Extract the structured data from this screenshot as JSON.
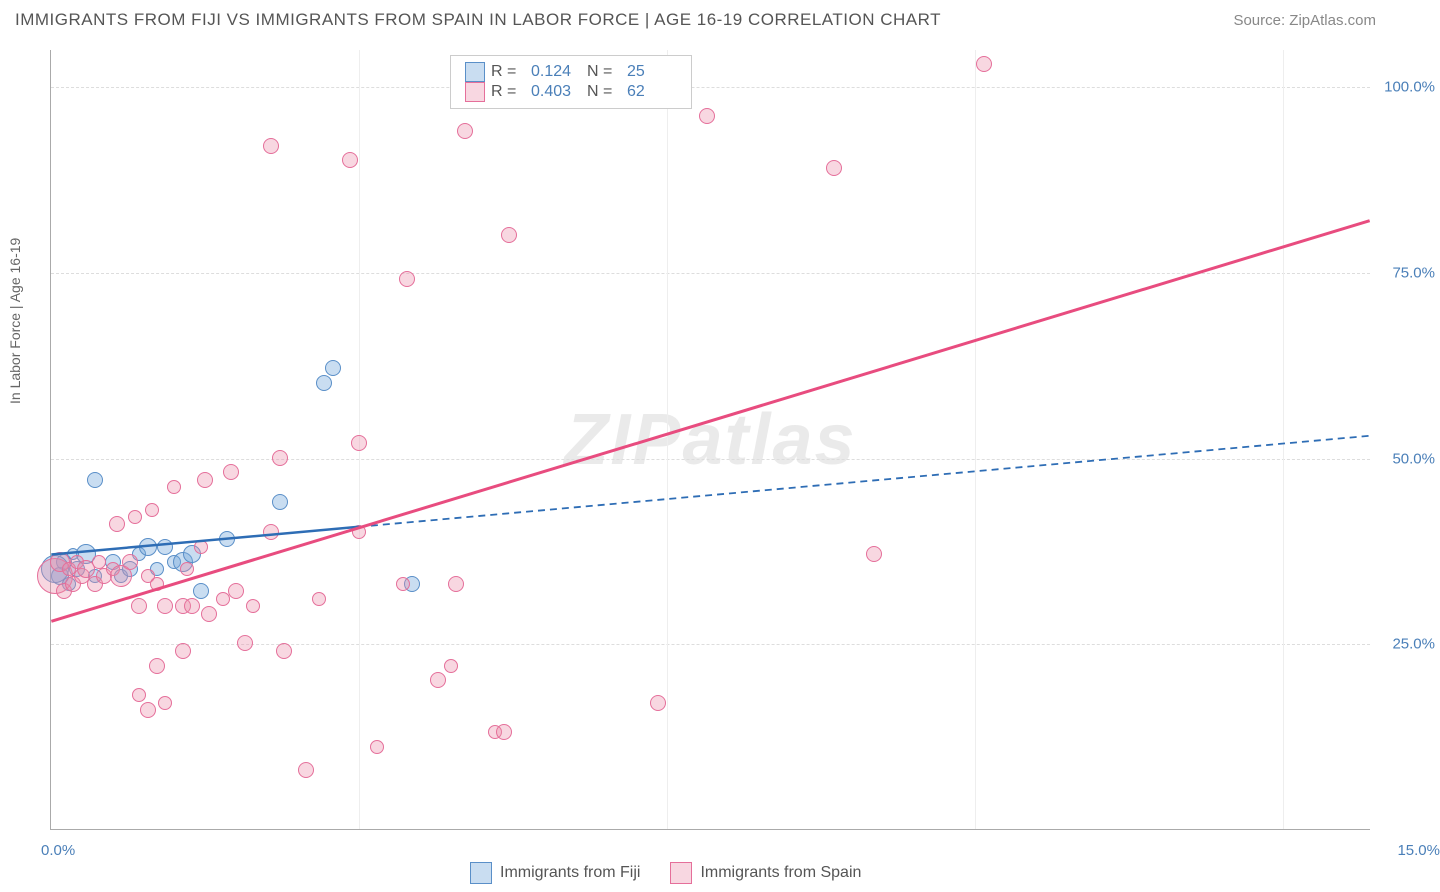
{
  "title": "IMMIGRANTS FROM FIJI VS IMMIGRANTS FROM SPAIN IN LABOR FORCE | AGE 16-19 CORRELATION CHART",
  "source": "Source: ZipAtlas.com",
  "watermark": "ZIPatlas",
  "chart": {
    "type": "scatter",
    "xlim": [
      0,
      15
    ],
    "ylim": [
      0,
      105
    ],
    "ylabel": "In Labor Force | Age 16-19",
    "yticks": [
      25.0,
      50.0,
      75.0,
      100.0
    ],
    "ytick_labels": [
      "25.0%",
      "50.0%",
      "75.0%",
      "100.0%"
    ],
    "xticks_label_left": "0.0%",
    "xticks_label_right": "15.0%",
    "xgrid_positions": [
      3.5,
      7.0,
      10.5,
      14.0
    ],
    "background_color": "#ffffff",
    "grid_color": "#dddddd",
    "axis_color": "#aaaaaa",
    "label_fontsize": 14,
    "tick_fontsize": 15,
    "tick_color": "#4a7fb8"
  },
  "series": [
    {
      "name": "Immigrants from Fiji",
      "marker_fill": "rgba(120,170,220,0.4)",
      "marker_stroke": "#5a8fc8",
      "line_color": "#2e6db5",
      "line_width": 2.5,
      "dash_after_x": 3.5,
      "r_value": "0.124",
      "n_value": "25",
      "trend": {
        "x1": 0,
        "y1": 37,
        "x2": 15,
        "y2": 53
      },
      "points": [
        {
          "x": 0.1,
          "y": 34,
          "r": 9
        },
        {
          "x": 0.15,
          "y": 36,
          "r": 8
        },
        {
          "x": 0.2,
          "y": 33,
          "r": 7
        },
        {
          "x": 0.3,
          "y": 35,
          "r": 8
        },
        {
          "x": 0.4,
          "y": 37,
          "r": 10
        },
        {
          "x": 0.5,
          "y": 34,
          "r": 7
        },
        {
          "x": 0.5,
          "y": 47,
          "r": 8
        },
        {
          "x": 0.7,
          "y": 36,
          "r": 8
        },
        {
          "x": 0.8,
          "y": 34,
          "r": 7
        },
        {
          "x": 0.9,
          "y": 35,
          "r": 8
        },
        {
          "x": 1.0,
          "y": 37,
          "r": 7
        },
        {
          "x": 1.1,
          "y": 38,
          "r": 9
        },
        {
          "x": 1.2,
          "y": 35,
          "r": 7
        },
        {
          "x": 1.3,
          "y": 38,
          "r": 8
        },
        {
          "x": 1.4,
          "y": 36,
          "r": 7
        },
        {
          "x": 1.5,
          "y": 36,
          "r": 10
        },
        {
          "x": 1.6,
          "y": 37,
          "r": 9
        },
        {
          "x": 1.7,
          "y": 32,
          "r": 8
        },
        {
          "x": 2.0,
          "y": 39,
          "r": 8
        },
        {
          "x": 2.6,
          "y": 44,
          "r": 8
        },
        {
          "x": 3.1,
          "y": 60,
          "r": 8
        },
        {
          "x": 3.2,
          "y": 62,
          "r": 8
        },
        {
          "x": 4.1,
          "y": 33,
          "r": 8
        },
        {
          "x": 0.05,
          "y": 35,
          "r": 14
        },
        {
          "x": 0.25,
          "y": 37,
          "r": 6
        }
      ]
    },
    {
      "name": "Immigrants from Spain",
      "marker_fill": "rgba(235,140,170,0.35)",
      "marker_stroke": "#e56f9a",
      "line_color": "#e84c7f",
      "line_width": 3,
      "dash_after_x": 15,
      "r_value": "0.403",
      "n_value": "62",
      "trend": {
        "x1": 0,
        "y1": 28,
        "x2": 15,
        "y2": 82
      },
      "points": [
        {
          "x": 0.05,
          "y": 34,
          "r": 18
        },
        {
          "x": 0.1,
          "y": 36,
          "r": 10
        },
        {
          "x": 0.15,
          "y": 32,
          "r": 8
        },
        {
          "x": 0.2,
          "y": 35,
          "r": 7
        },
        {
          "x": 0.25,
          "y": 33,
          "r": 8
        },
        {
          "x": 0.3,
          "y": 36,
          "r": 7
        },
        {
          "x": 0.35,
          "y": 34,
          "r": 8
        },
        {
          "x": 0.4,
          "y": 35,
          "r": 9
        },
        {
          "x": 0.5,
          "y": 33,
          "r": 8
        },
        {
          "x": 0.55,
          "y": 36,
          "r": 7
        },
        {
          "x": 0.6,
          "y": 34,
          "r": 8
        },
        {
          "x": 0.7,
          "y": 35,
          "r": 7
        },
        {
          "x": 0.75,
          "y": 41,
          "r": 8
        },
        {
          "x": 0.8,
          "y": 34,
          "r": 11
        },
        {
          "x": 0.9,
          "y": 36,
          "r": 8
        },
        {
          "x": 0.95,
          "y": 42,
          "r": 7
        },
        {
          "x": 1.0,
          "y": 18,
          "r": 7
        },
        {
          "x": 1.0,
          "y": 30,
          "r": 8
        },
        {
          "x": 1.1,
          "y": 34,
          "r": 7
        },
        {
          "x": 1.1,
          "y": 16,
          "r": 8
        },
        {
          "x": 1.15,
          "y": 43,
          "r": 7
        },
        {
          "x": 1.2,
          "y": 22,
          "r": 8
        },
        {
          "x": 1.2,
          "y": 33,
          "r": 7
        },
        {
          "x": 1.3,
          "y": 30,
          "r": 8
        },
        {
          "x": 1.3,
          "y": 17,
          "r": 7
        },
        {
          "x": 1.4,
          "y": 46,
          "r": 7
        },
        {
          "x": 1.5,
          "y": 30,
          "r": 8
        },
        {
          "x": 1.5,
          "y": 24,
          "r": 8
        },
        {
          "x": 1.55,
          "y": 35,
          "r": 7
        },
        {
          "x": 1.6,
          "y": 30,
          "r": 8
        },
        {
          "x": 1.7,
          "y": 38,
          "r": 7
        },
        {
          "x": 1.75,
          "y": 47,
          "r": 8
        },
        {
          "x": 1.8,
          "y": 29,
          "r": 8
        },
        {
          "x": 1.95,
          "y": 31,
          "r": 7
        },
        {
          "x": 2.05,
          "y": 48,
          "r": 8
        },
        {
          "x": 2.1,
          "y": 32,
          "r": 8
        },
        {
          "x": 2.2,
          "y": 25,
          "r": 8
        },
        {
          "x": 2.3,
          "y": 30,
          "r": 7
        },
        {
          "x": 2.5,
          "y": 40,
          "r": 8
        },
        {
          "x": 2.5,
          "y": 92,
          "r": 8
        },
        {
          "x": 2.6,
          "y": 50,
          "r": 8
        },
        {
          "x": 2.65,
          "y": 24,
          "r": 8
        },
        {
          "x": 2.9,
          "y": 8,
          "r": 8
        },
        {
          "x": 3.05,
          "y": 31,
          "r": 7
        },
        {
          "x": 3.4,
          "y": 90,
          "r": 8
        },
        {
          "x": 3.5,
          "y": 52,
          "r": 8
        },
        {
          "x": 3.5,
          "y": 40,
          "r": 7
        },
        {
          "x": 3.7,
          "y": 11,
          "r": 7
        },
        {
          "x": 4.0,
          "y": 33,
          "r": 7
        },
        {
          "x": 4.05,
          "y": 74,
          "r": 8
        },
        {
          "x": 4.4,
          "y": 20,
          "r": 8
        },
        {
          "x": 4.55,
          "y": 22,
          "r": 7
        },
        {
          "x": 4.6,
          "y": 33,
          "r": 8
        },
        {
          "x": 4.7,
          "y": 94,
          "r": 8
        },
        {
          "x": 5.05,
          "y": 13,
          "r": 7
        },
        {
          "x": 5.15,
          "y": 13,
          "r": 8
        },
        {
          "x": 5.2,
          "y": 80,
          "r": 8
        },
        {
          "x": 6.9,
          "y": 17,
          "r": 8
        },
        {
          "x": 7.45,
          "y": 96,
          "r": 8
        },
        {
          "x": 8.9,
          "y": 89,
          "r": 8
        },
        {
          "x": 9.35,
          "y": 37,
          "r": 8
        },
        {
          "x": 10.6,
          "y": 103,
          "r": 8
        }
      ]
    }
  ],
  "legend_top": {
    "r_label": "R  =",
    "n_label": "N  ="
  },
  "legend_bottom": {
    "swatch_blue": {
      "fill": "rgba(120,170,220,0.4)",
      "border": "#5a8fc8"
    },
    "swatch_pink": {
      "fill": "rgba(235,140,170,0.35)",
      "border": "#e56f9a"
    }
  }
}
